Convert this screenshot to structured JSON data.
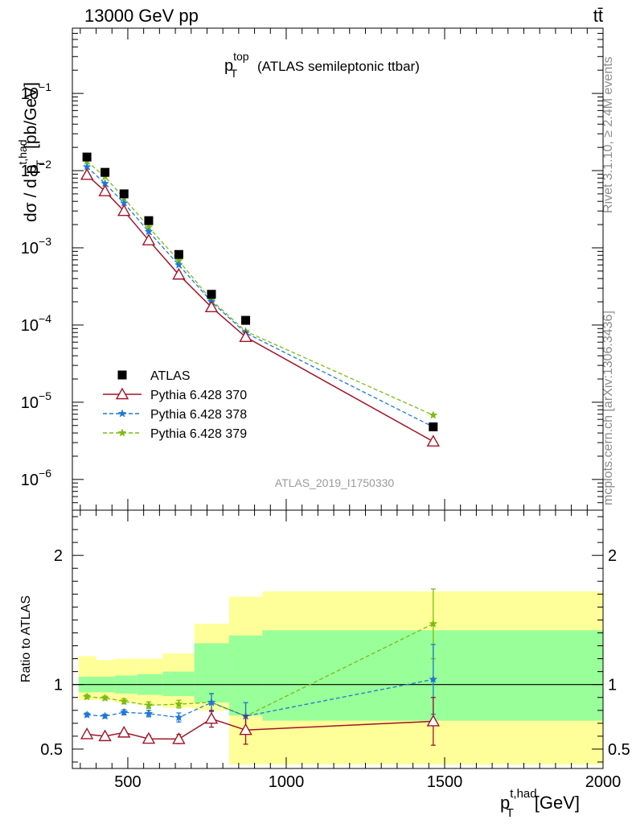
{
  "header": {
    "left": "13000 GeV pp",
    "right": "tt̄"
  },
  "side_labels": {
    "rivet": "Rivet 3.1.10, ≥ 2.4M events",
    "mcplots": "mcplots.cern.ch [arXiv:1306.3436]"
  },
  "chart_data": [
    {
      "type": "scatter",
      "panel": "main",
      "title_main": "p",
      "title_sup": "top",
      "title_sub": "T",
      "title_rest": "(ATLAS semileptonic ttbar)",
      "ylabel_main": "dσ / d p",
      "ylabel_sup": "t,had",
      "ylabel_sub": "T",
      "ylabel_unit": "[pb/GeV]",
      "watermark": "ATLAS_2019_I1750330",
      "yscale": "log",
      "xlim": [
        325,
        2000
      ],
      "ylim": [
        4e-07,
        0.7
      ],
      "yticks": [
        {
          "value": 1e-06,
          "base": "10",
          "exp": "−6"
        },
        {
          "value": 1e-05,
          "base": "10",
          "exp": "−5"
        },
        {
          "value": 0.0001,
          "base": "10",
          "exp": "−4"
        },
        {
          "value": 0.001,
          "base": "10",
          "exp": "−3"
        },
        {
          "value": 0.01,
          "base": "10",
          "exp": "−2"
        },
        {
          "value": 0.1,
          "base": "10",
          "exp": "−1"
        }
      ],
      "legend_position": "lower-left",
      "x": [
        371,
        428,
        488,
        566,
        661,
        764,
        872,
        1464
      ],
      "series": [
        {
          "name": "ATLAS",
          "color": "#000000",
          "marker": "square",
          "values": [
            0.015,
            0.0095,
            0.005,
            0.00225,
            0.00082,
            0.00025,
            0.000115,
            4.8e-06
          ]
        },
        {
          "name": "Pythia 6.428 370",
          "color": "#a01428",
          "marker": "triangle-open",
          "line": "solid",
          "values": [
            0.0088,
            0.0054,
            0.003,
            0.00125,
            0.00045,
            0.00017,
            7e-05,
            3.1e-06
          ]
        },
        {
          "name": "Pythia 6.428 378",
          "color": "#1f78d6",
          "marker": "star",
          "line": "dashed",
          "values": [
            0.0112,
            0.0068,
            0.0038,
            0.00162,
            0.0006,
            0.0002,
            7.9e-05,
            4.8e-06
          ]
        },
        {
          "name": "Pythia 6.428 379",
          "color": "#7cbb12",
          "marker": "star",
          "line": "dashed",
          "values": [
            0.0132,
            0.0083,
            0.0044,
            0.00185,
            0.00068,
            0.00021,
            8.3e-05,
            6.8e-06
          ]
        }
      ]
    },
    {
      "type": "line",
      "panel": "ratio",
      "ylabel": "Ratio to ATLAS",
      "xlabel_main": "p",
      "xlabel_sup": "t,had",
      "xlabel_sub": "T",
      "xlabel_unit": "[GeV]",
      "xlim": [
        325,
        2000
      ],
      "ylim": [
        0.35,
        2.35
      ],
      "xticks": [
        500,
        1000,
        1500,
        2000
      ],
      "yticks": [
        0.5,
        1,
        2
      ],
      "bins": [
        {
          "lo": 345,
          "hi": 400,
          "inner": [
            0.94,
            1.06
          ],
          "outer": [
            0.88,
            1.22
          ]
        },
        {
          "lo": 400,
          "hi": 460,
          "inner": [
            0.94,
            1.06
          ],
          "outer": [
            0.88,
            1.19
          ]
        },
        {
          "lo": 460,
          "hi": 530,
          "inner": [
            0.93,
            1.07
          ],
          "outer": [
            0.86,
            1.2
          ]
        },
        {
          "lo": 530,
          "hi": 610,
          "inner": [
            0.92,
            1.08
          ],
          "outer": [
            0.84,
            1.2
          ]
        },
        {
          "lo": 610,
          "hi": 710,
          "inner": [
            0.91,
            1.1
          ],
          "outer": [
            0.82,
            1.24
          ]
        },
        {
          "lo": 710,
          "hi": 820,
          "inner": [
            0.86,
            1.32
          ],
          "outer": [
            0.8,
            1.47
          ]
        },
        {
          "lo": 820,
          "hi": 925,
          "inner": [
            0.76,
            1.38
          ],
          "outer": [
            0.38,
            1.68
          ]
        },
        {
          "lo": 925,
          "hi": 2000,
          "inner": [
            0.72,
            1.42
          ],
          "outer": [
            0.38,
            1.72
          ]
        }
      ],
      "x": [
        371,
        428,
        488,
        566,
        661,
        764,
        872,
        1464
      ],
      "series": [
        {
          "name": "Pythia 6.428 370",
          "color": "#a01428",
          "marker": "triangle-open",
          "line": "solid",
          "values": [
            0.615,
            0.6,
            0.628,
            0.58,
            0.578,
            0.735,
            0.648,
            0.715
          ],
          "err": [
            0.015,
            0.015,
            0.015,
            0.025,
            0.035,
            0.065,
            0.11,
            0.185
          ]
        },
        {
          "name": "Pythia 6.428 378",
          "color": "#1f78d6",
          "marker": "star",
          "line": "dashed",
          "values": [
            0.765,
            0.755,
            0.785,
            0.775,
            0.745,
            0.86,
            0.755,
            1.04
          ],
          "err": [
            0.015,
            0.015,
            0.02,
            0.025,
            0.035,
            0.07,
            0.105,
            0.27
          ]
        },
        {
          "name": "Pythia 6.428 379",
          "color": "#7cbb12",
          "marker": "star",
          "line": "dashed",
          "values": [
            0.905,
            0.895,
            0.87,
            0.84,
            0.848,
            0.862,
            0.755,
            1.47
          ],
          "err": [
            0.015,
            0.015,
            0.02,
            0.025,
            0.03,
            0.065,
            0.105,
            0.27
          ]
        }
      ],
      "reference_line": 1
    }
  ]
}
